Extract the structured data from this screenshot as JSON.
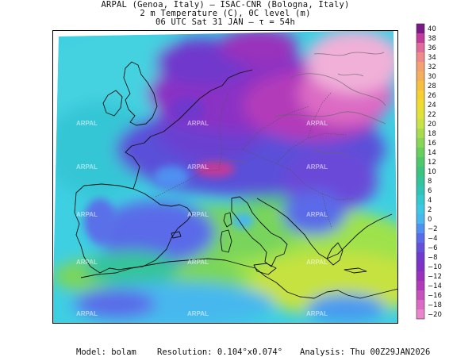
{
  "header": {
    "line1": "ARPAL (Genoa, Italy)  –  ISAC-CNR (Bologna, Italy)",
    "line2": "2 m Temperature (C), 0C level (m)",
    "line3": "06 UTC Sat 31 JAN  –  τ = 54h"
  },
  "footer": {
    "model_label": "Model:",
    "model_value": "bolam",
    "resolution_label": "Resolution:",
    "resolution_value": "0.104°x0.074°",
    "analysis_label": "Analysis:",
    "analysis_value": "Thu  00Z29JAN2026"
  },
  "watermark": "ARPAL",
  "colorbar": {
    "labels": [
      "40",
      "38",
      "36",
      "34",
      "32",
      "30",
      "28",
      "26",
      "24",
      "22",
      "20",
      "18",
      "16",
      "14",
      "12",
      "10",
      "8",
      "6",
      "4",
      "2",
      "0",
      "−2",
      "−4",
      "−6",
      "−8",
      "−10",
      "−12",
      "−14",
      "−16",
      "−18",
      "−20"
    ],
    "colors": [
      "#7a1a87",
      "#c23a9a",
      "#e06a9c",
      "#f08a8a",
      "#f4a070",
      "#f5ae5a",
      "#f5c040",
      "#f5d030",
      "#eedc30",
      "#e0e23a",
      "#c8e248",
      "#a8dc50",
      "#88d656",
      "#66cf5e",
      "#4ec86a",
      "#3cc47e",
      "#34c49a",
      "#30c4b6",
      "#34c8d0",
      "#3cc8e4",
      "#46b8ee",
      "#5090f0",
      "#5a6ae8",
      "#6250d8",
      "#7038cc",
      "#8030c4",
      "#9a30bc",
      "#b23aba",
      "#c850bc",
      "#dc6ac4",
      "#ea84cc"
    ]
  }
}
